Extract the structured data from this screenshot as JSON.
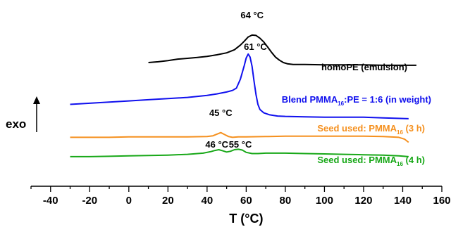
{
  "chart_data": {
    "type": "line",
    "title": "",
    "xlabel": "T (°C)",
    "ylabel": "exo",
    "xlim": [
      -50,
      160
    ],
    "xticks": [
      -40,
      -20,
      0,
      20,
      40,
      60,
      80,
      100,
      120,
      140,
      160
    ],
    "grid": false,
    "y_units": "arbitrary (stacked DSC heat flow, exo up)",
    "series": [
      {
        "name": "homoPE (emulsion)",
        "color": "#000000",
        "x": [
          10,
          15,
          20,
          25,
          30,
          35,
          40,
          45,
          50,
          54,
          57,
          59,
          61,
          63,
          65,
          67,
          69,
          71,
          73,
          75,
          77,
          79,
          81,
          84,
          90,
          100,
          110,
          120,
          130,
          140,
          147
        ],
        "y": [
          0.88,
          0.9,
          0.93,
          0.97,
          0.99,
          1.01,
          1.04,
          1.08,
          1.13,
          1.21,
          1.33,
          1.43,
          1.54,
          1.59,
          1.58,
          1.51,
          1.41,
          1.28,
          1.14,
          1.02,
          0.94,
          0.88,
          0.85,
          0.83,
          0.83,
          0.82,
          0.82,
          0.82,
          0.81,
          0.81,
          0.81
        ]
      },
      {
        "name": "Blend PMMA16:PE = 1:6 (in weight)",
        "legend_parts": [
          "Blend PMMA",
          "16",
          ":PE = 1:6 (in weight)"
        ],
        "color": "#1010ee",
        "x": [
          -30,
          -20,
          -10,
          0,
          10,
          20,
          30,
          40,
          45,
          50,
          53,
          55,
          57,
          59,
          60,
          61,
          62,
          63,
          64,
          65,
          66,
          67,
          69,
          72,
          76,
          80,
          90,
          100,
          110,
          120,
          130,
          143
        ],
        "y": [
          -0.2,
          -0.17,
          -0.14,
          -0.11,
          -0.08,
          -0.05,
          -0.02,
          0.03,
          0.07,
          0.12,
          0.16,
          0.22,
          0.45,
          0.8,
          1.0,
          1.1,
          1.02,
          0.78,
          0.4,
          0.05,
          -0.2,
          -0.33,
          -0.42,
          -0.47,
          -0.5,
          -0.51,
          -0.52,
          -0.53,
          -0.53,
          -0.53,
          -0.55,
          -0.57
        ]
      },
      {
        "name": "Seed used: PMMA16 (3 h)",
        "legend_parts": [
          "Seed used: PMMA",
          "16",
          "  (3 h)"
        ],
        "color": "#f5901e",
        "x": [
          -30,
          -20,
          -10,
          0,
          10,
          20,
          30,
          40,
          43,
          45,
          47,
          49,
          51,
          53,
          56,
          60,
          70,
          80,
          90,
          100,
          110,
          120,
          130,
          138,
          141,
          143
        ],
        "y": [
          -1.05,
          -1.05,
          -1.05,
          -1.04,
          -1.04,
          -1.04,
          -1.04,
          -1.03,
          -1.01,
          -0.97,
          -0.93,
          -0.98,
          -1.03,
          -1.05,
          -1.04,
          -1.04,
          -1.03,
          -1.02,
          -1.02,
          -1.02,
          -1.02,
          -1.02,
          -1.03,
          -1.05,
          -1.1,
          -1.18
        ]
      },
      {
        "name": "Seed used: PMMA16 (4 h)",
        "legend_parts": [
          "Seed used: PMMA",
          "16",
          "  (4 h)"
        ],
        "color": "#18a818",
        "x": [
          -30,
          -20,
          -10,
          0,
          10,
          20,
          30,
          38,
          42,
          44,
          46,
          48,
          50,
          52,
          54,
          56,
          58,
          60,
          63,
          66,
          70,
          80,
          90,
          100,
          110,
          120,
          130,
          138,
          143
        ],
        "y": [
          -1.55,
          -1.55,
          -1.54,
          -1.53,
          -1.52,
          -1.51,
          -1.49,
          -1.46,
          -1.42,
          -1.39,
          -1.37,
          -1.4,
          -1.43,
          -1.41,
          -1.37,
          -1.36,
          -1.38,
          -1.44,
          -1.47,
          -1.47,
          -1.46,
          -1.46,
          -1.47,
          -1.48,
          -1.49,
          -1.5,
          -1.51,
          -1.53,
          -1.55
        ]
      }
    ],
    "annotations": [
      {
        "text": "64 °C",
        "x": 63,
        "series": "homoPE (emulsion)"
      },
      {
        "text": "61 °C",
        "x": 64,
        "series": "Blend PMMA16:PE = 1:6 (in weight)"
      },
      {
        "text": "45 °C",
        "x": 47,
        "series": "Seed used: PMMA16 (3 h)"
      },
      {
        "text": "46 °C",
        "x": 45,
        "series": "Seed used: PMMA16 (4 h)"
      },
      {
        "text": "55 °C",
        "x": 57,
        "series": "Seed used: PMMA16 (4 h)"
      }
    ]
  }
}
